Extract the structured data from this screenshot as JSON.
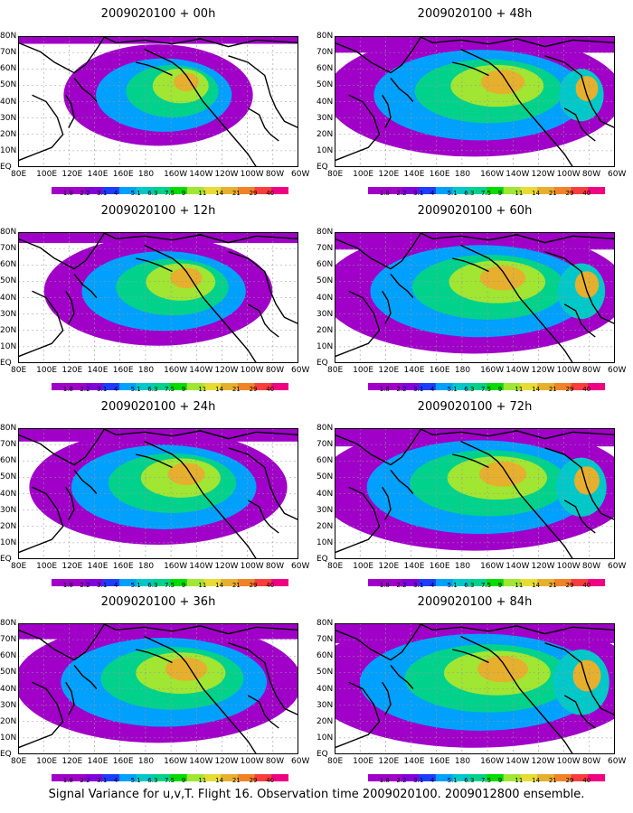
{
  "panels": [
    {
      "title": "2009020100 + 00h",
      "intensity": 0.25
    },
    {
      "title": "2009020100 + 12h",
      "intensity": 0.45
    },
    {
      "title": "2009020100 + 24h",
      "intensity": 0.6
    },
    {
      "title": "2009020100 + 36h",
      "intensity": 0.75
    },
    {
      "title": "2009020100 + 48h",
      "intensity": 0.8
    },
    {
      "title": "2009020100 + 60h",
      "intensity": 0.85
    },
    {
      "title": "2009020100 + 72h",
      "intensity": 0.9
    },
    {
      "title": "2009020100 + 84h",
      "intensity": 1.0
    }
  ],
  "lat_labels": [
    "80N",
    "70N",
    "60N",
    "50N",
    "40N",
    "30N",
    "20N",
    "10N",
    "EQ"
  ],
  "lon_labels": [
    "80E",
    "100E",
    "120E",
    "140E",
    "160E",
    "180",
    "160W",
    "140W",
    "120W",
    "100W",
    "80W",
    "60W"
  ],
  "colorbar": {
    "labels": [
      "1.8",
      "2.2",
      "3.1",
      "4",
      "5.1",
      "6.3",
      "7.5",
      "9",
      "11",
      "14",
      "21",
      "29",
      "40"
    ],
    "colors": [
      "#a000c8",
      "#8200dc",
      "#1e3cff",
      "#00a0ff",
      "#00c8c8",
      "#00d28c",
      "#00dc00",
      "#a0e632",
      "#e6dc32",
      "#e6af2d",
      "#f08228",
      "#fa3c3c",
      "#f00082"
    ]
  },
  "caption": "Signal Variance for u,v,T. Flight 16. Observation time 2009020100. 2009012800 ensemble."
}
